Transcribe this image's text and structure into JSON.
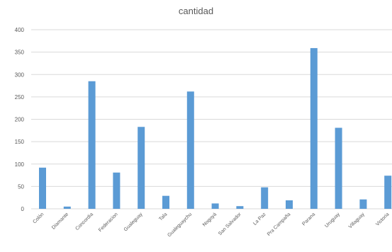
{
  "chart_data": {
    "type": "bar",
    "title": "cantidad",
    "xlabel": "",
    "ylabel": "",
    "ylim": [
      0,
      400
    ],
    "yticks": [
      0,
      50,
      100,
      150,
      200,
      250,
      300,
      350,
      400
    ],
    "grid": true,
    "legend": "none",
    "categories": [
      "Colón",
      "Diamante",
      "Concordia",
      "Federacion",
      "Gualeguay",
      "Tala",
      "Gualeguaychu",
      "Nogoyá",
      "San Salvador",
      "La Paz",
      "Pra Campaña",
      "Parana",
      "Uruguay",
      "Villaguay",
      "Victoria"
    ],
    "series": [
      {
        "values": [
          92,
          5,
          285,
          81,
          183,
          29,
          262,
          12,
          6,
          48,
          19,
          359,
          181,
          21,
          74
        ]
      }
    ],
    "colors": {
      "bar": "#5b9bd5",
      "grid": "#d9d9d9",
      "text": "#595959"
    }
  }
}
